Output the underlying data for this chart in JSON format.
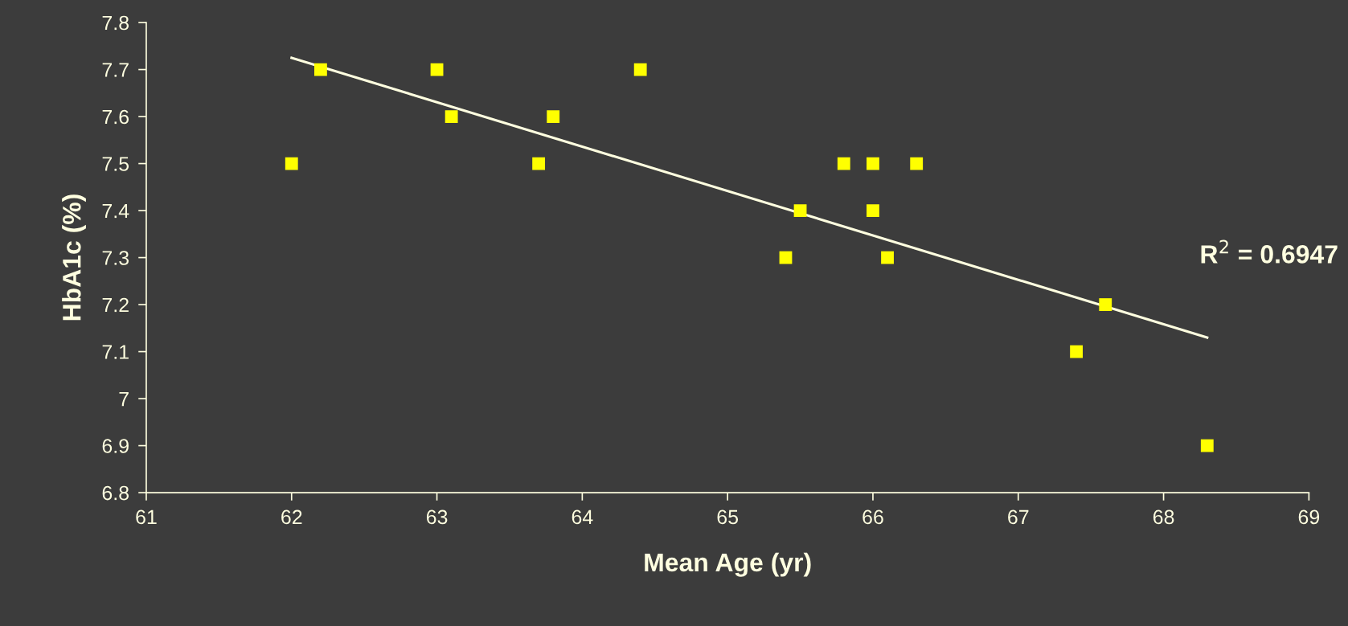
{
  "chart_data": {
    "type": "scatter",
    "xlabel": "Mean Age (yr)",
    "ylabel": "HbA1c (%)",
    "series": [
      {
        "color": "#ffff00",
        "marker": "square",
        "x": [
          62.0,
          62.2,
          63.0,
          63.1,
          63.7,
          63.8,
          64.4,
          65.4,
          65.5,
          65.8,
          66.0,
          66.0,
          66.1,
          66.3,
          67.4,
          67.6,
          68.3
        ],
        "values": [
          7.5,
          7.7,
          7.7,
          7.6,
          7.5,
          7.6,
          7.7,
          7.3,
          7.4,
          7.5,
          7.5,
          7.4,
          7.3,
          7.5,
          7.1,
          7.2,
          6.9
        ]
      },
      {
        "type": "line",
        "color": "#ffffe0",
        "marker": "none",
        "x": [
          62.0,
          68.3
        ],
        "values": [
          7.725,
          7.13
        ]
      }
    ],
    "annotations": [
      "R$^{2}$ = 0.6947"
    ],
    "xlim": [
      61,
      69
    ],
    "xticks": [
      61,
      62,
      63,
      64,
      65,
      66,
      67,
      68,
      69
    ],
    "ylim": [
      6.8,
      7.8
    ],
    "yticks": [
      {
        "value": 6.8,
        "label": "6.8"
      },
      {
        "value": 6.9,
        "label": "6.9"
      },
      {
        "value": 7.0,
        "label": "7"
      },
      {
        "value": 7.1,
        "label": "7.1"
      },
      {
        "value": 7.2,
        "label": "7.2"
      },
      {
        "value": 7.3,
        "label": "7.3"
      },
      {
        "value": 7.4,
        "label": "7.4"
      },
      {
        "value": 7.5,
        "label": "7.5"
      },
      {
        "value": 7.6,
        "label": "7.6"
      },
      {
        "value": 7.7,
        "label": "7.7"
      },
      {
        "value": 7.8,
        "label": "7.8"
      }
    ],
    "grid": false,
    "legend": false
  }
}
